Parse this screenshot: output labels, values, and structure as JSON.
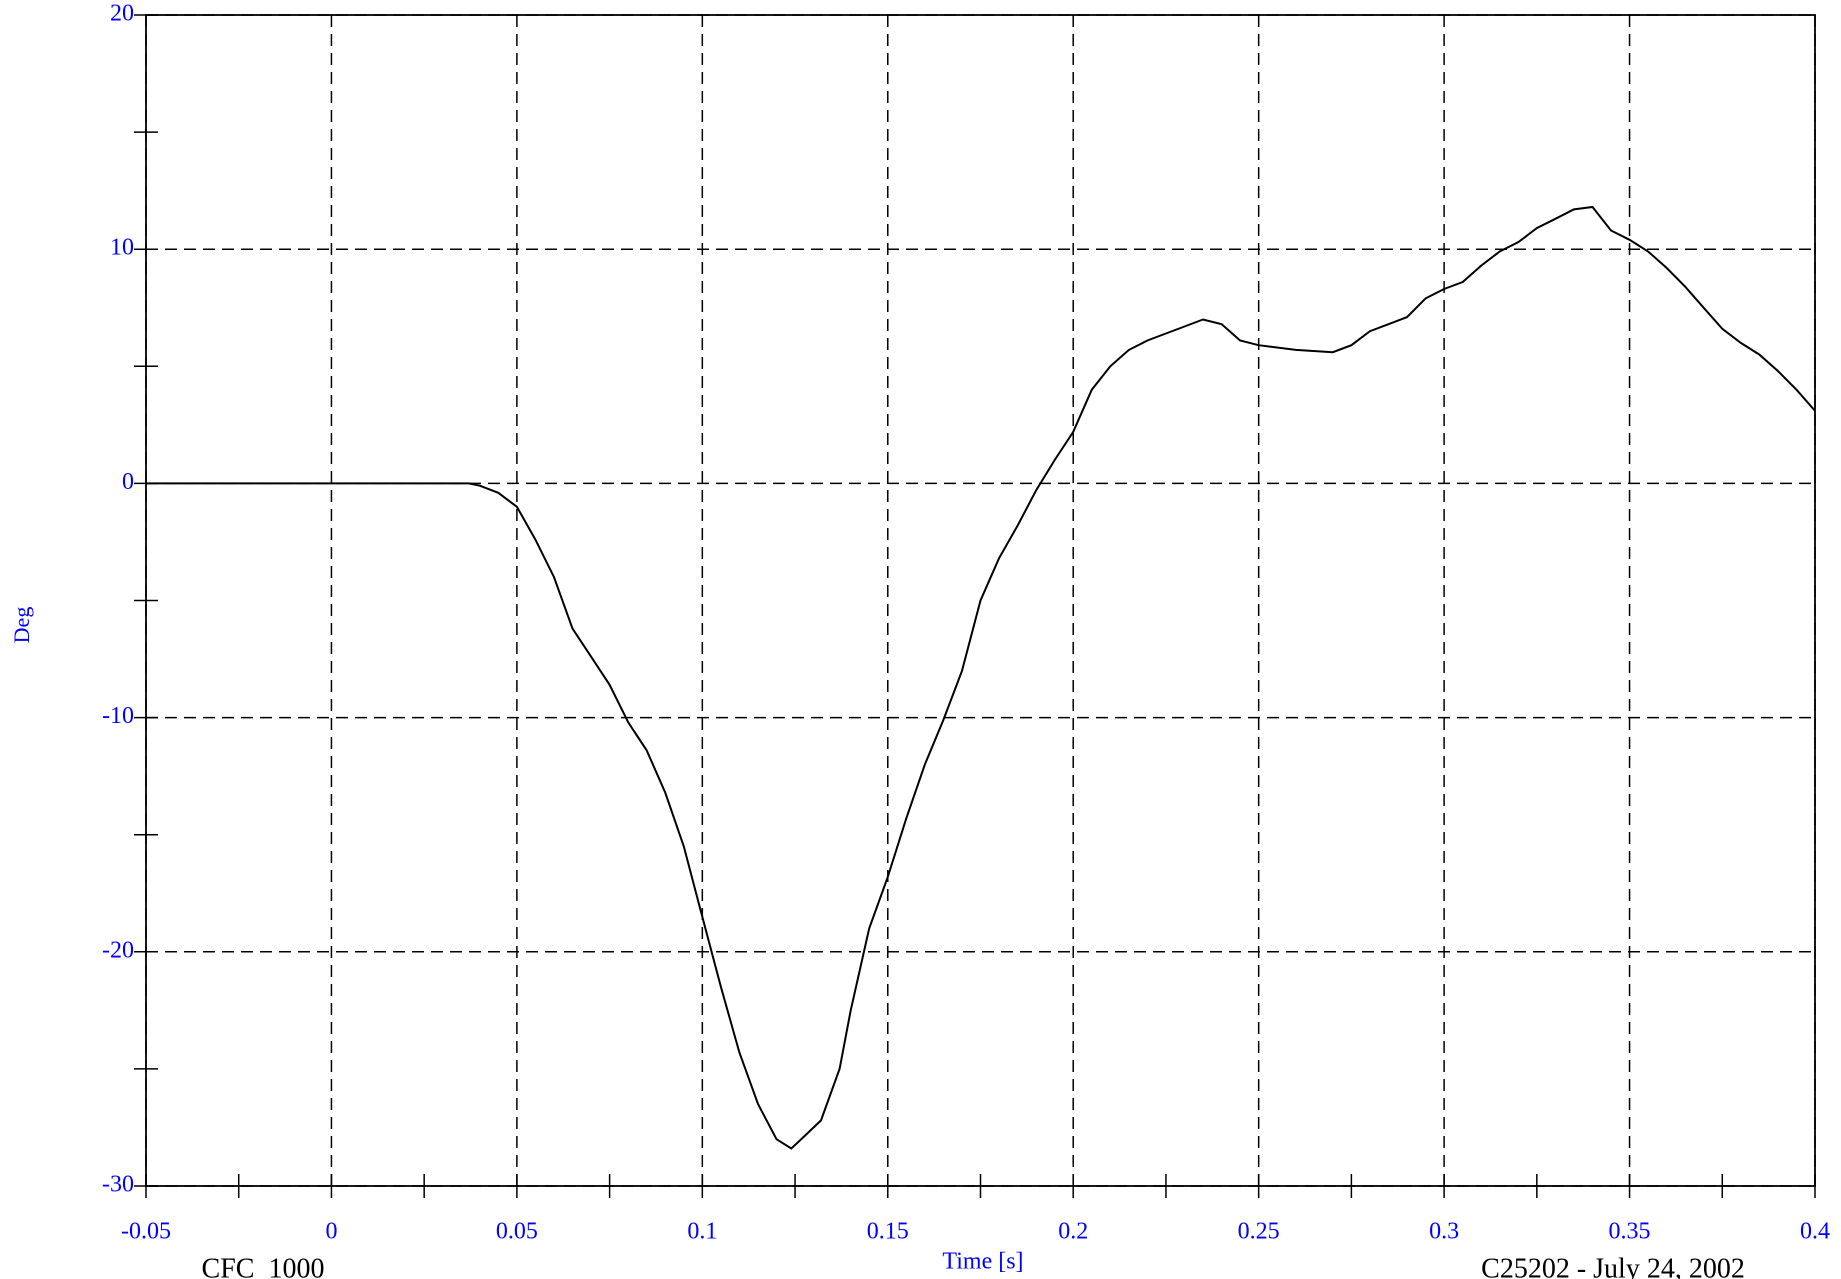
{
  "chart_data": {
    "type": "line",
    "xlabel": "Time [s]",
    "ylabel": "Deg",
    "footer_left": "CFC_1000",
    "footer_right": "C25202 - July 24, 2002",
    "xlim": [
      -0.05,
      0.4
    ],
    "xticks": [
      -0.05,
      0,
      0.05,
      0.1,
      0.15,
      0.2,
      0.25,
      0.3,
      0.35,
      0.4
    ],
    "xminor": [
      -0.025,
      0.025,
      0.075,
      0.125,
      0.175,
      0.225,
      0.275,
      0.325,
      0.375
    ],
    "ylim": [
      -30,
      20
    ],
    "yticks": [
      -30,
      -20,
      -10,
      0,
      10,
      20
    ],
    "yminor": [
      -25,
      -15,
      -5,
      5,
      15
    ],
    "grid": true,
    "series": [
      {
        "color": "#000000",
        "x": [
          -0.05,
          0.037,
          0.04,
          0.045,
          0.05,
          0.055,
          0.06,
          0.065,
          0.07,
          0.075,
          0.08,
          0.085,
          0.09,
          0.095,
          0.1,
          0.105,
          0.11,
          0.115,
          0.12,
          0.124,
          0.128,
          0.132,
          0.137,
          0.14,
          0.145,
          0.15,
          0.155,
          0.16,
          0.165,
          0.17,
          0.175,
          0.18,
          0.185,
          0.19,
          0.195,
          0.2,
          0.205,
          0.21,
          0.215,
          0.22,
          0.225,
          0.23,
          0.235,
          0.24,
          0.245,
          0.25,
          0.26,
          0.27,
          0.275,
          0.28,
          0.29,
          0.295,
          0.3,
          0.305,
          0.31,
          0.315,
          0.32,
          0.325,
          0.33,
          0.335,
          0.34,
          0.345,
          0.35,
          0.355,
          0.36,
          0.365,
          0.37,
          0.375,
          0.38,
          0.385,
          0.39,
          0.395,
          0.4
        ],
        "values": [
          0,
          0,
          -0.1,
          -0.4,
          -1.0,
          -2.4,
          -4.0,
          -6.2,
          -7.4,
          -8.6,
          -10.2,
          -11.4,
          -13.2,
          -15.5,
          -18.5,
          -21.5,
          -24.3,
          -26.5,
          -28.0,
          -28.4,
          -27.8,
          -27.2,
          -25.0,
          -22.5,
          -19.0,
          -16.8,
          -14.3,
          -12.0,
          -10.1,
          -8.0,
          -5.0,
          -3.2,
          -1.8,
          -0.3,
          1.0,
          2.2,
          4.0,
          5.0,
          5.7,
          6.1,
          6.4,
          6.7,
          7.0,
          6.8,
          6.1,
          5.9,
          5.7,
          5.6,
          5.9,
          6.5,
          7.1,
          7.9,
          8.3,
          8.6,
          9.3,
          9.9,
          10.3,
          10.9,
          11.3,
          11.7,
          11.8,
          10.8,
          10.4,
          9.9,
          9.2,
          8.4,
          7.5,
          6.6,
          6.0,
          5.5,
          4.8,
          4.0,
          3.1
        ]
      }
    ]
  }
}
